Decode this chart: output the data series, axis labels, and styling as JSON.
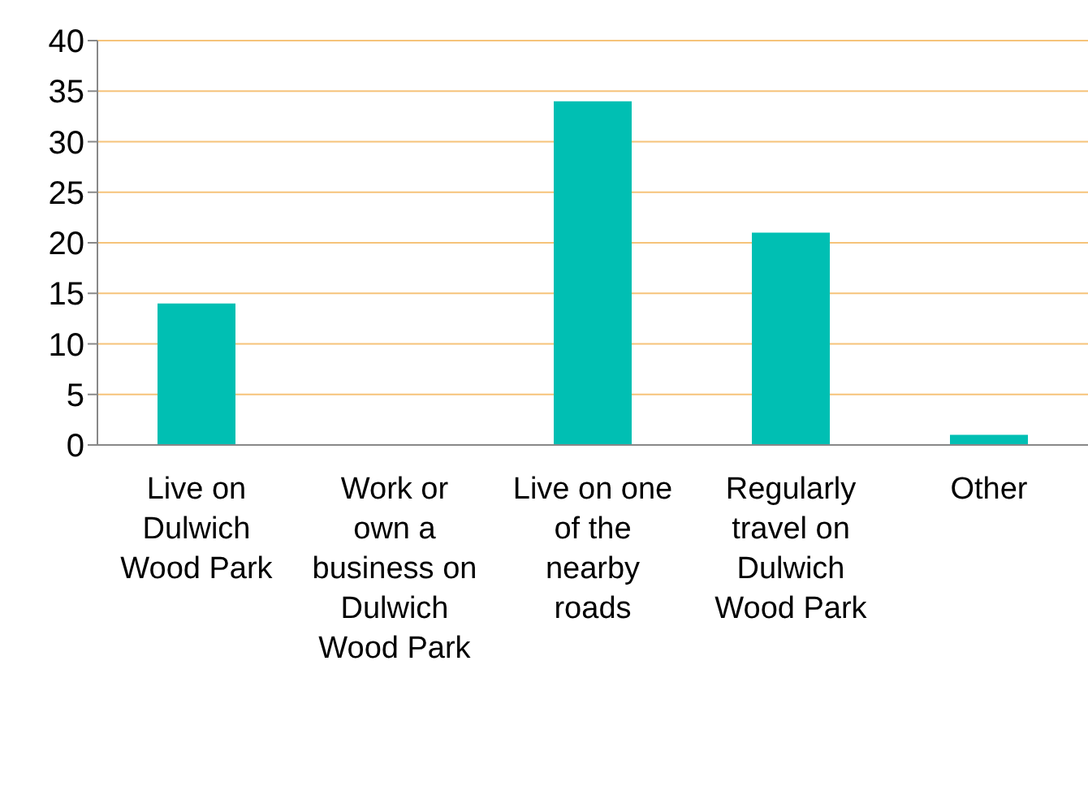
{
  "chart_data": {
    "type": "bar",
    "categories": [
      "Live on Dulwich Wood Park",
      "Work or own a business on Dulwich Wood Park",
      "Live on one of the nearby roads",
      "Regularly travel on Dulwich Wood Park",
      "Other"
    ],
    "values": [
      14,
      0,
      34,
      21,
      1
    ],
    "color": "#00bfb3",
    "ylim": [
      0,
      40
    ],
    "yticks": [
      0,
      5,
      10,
      15,
      20,
      25,
      30,
      35,
      40
    ],
    "grid": "y",
    "legend": false
  }
}
